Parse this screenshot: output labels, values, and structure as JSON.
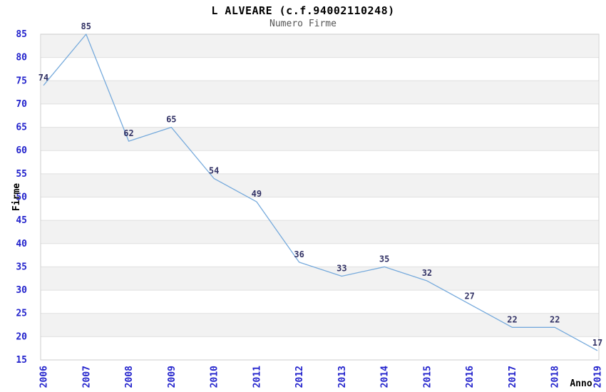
{
  "chart_data": {
    "type": "line",
    "title": "L ALVEARE (c.f.94002110248)",
    "subtitle": "Numero Firme",
    "xlabel": "Anno",
    "ylabel": "Firme",
    "categories": [
      "2006",
      "2007",
      "2008",
      "2009",
      "2010",
      "2011",
      "2012",
      "2013",
      "2014",
      "2015",
      "2016",
      "2017",
      "2018",
      "2019"
    ],
    "values": [
      74,
      85,
      62,
      65,
      54,
      49,
      36,
      33,
      35,
      32,
      27,
      22,
      22,
      17
    ],
    "ylim": [
      15,
      85
    ],
    "ytick_step": 5,
    "grid": "horizontal-bands-alternating",
    "legend": "none",
    "x_labels_rotated_degrees": 90,
    "colors": {
      "line": "#76aadc",
      "tick_label": "#2222cc",
      "value_label": "#333366",
      "band": "#f2f2f2",
      "grid_line": "#e0e0e0",
      "plot_border": "#cccccc",
      "title": "#000000",
      "subtitle": "#555555",
      "axis_title": "#000000",
      "background": "#ffffff"
    }
  }
}
